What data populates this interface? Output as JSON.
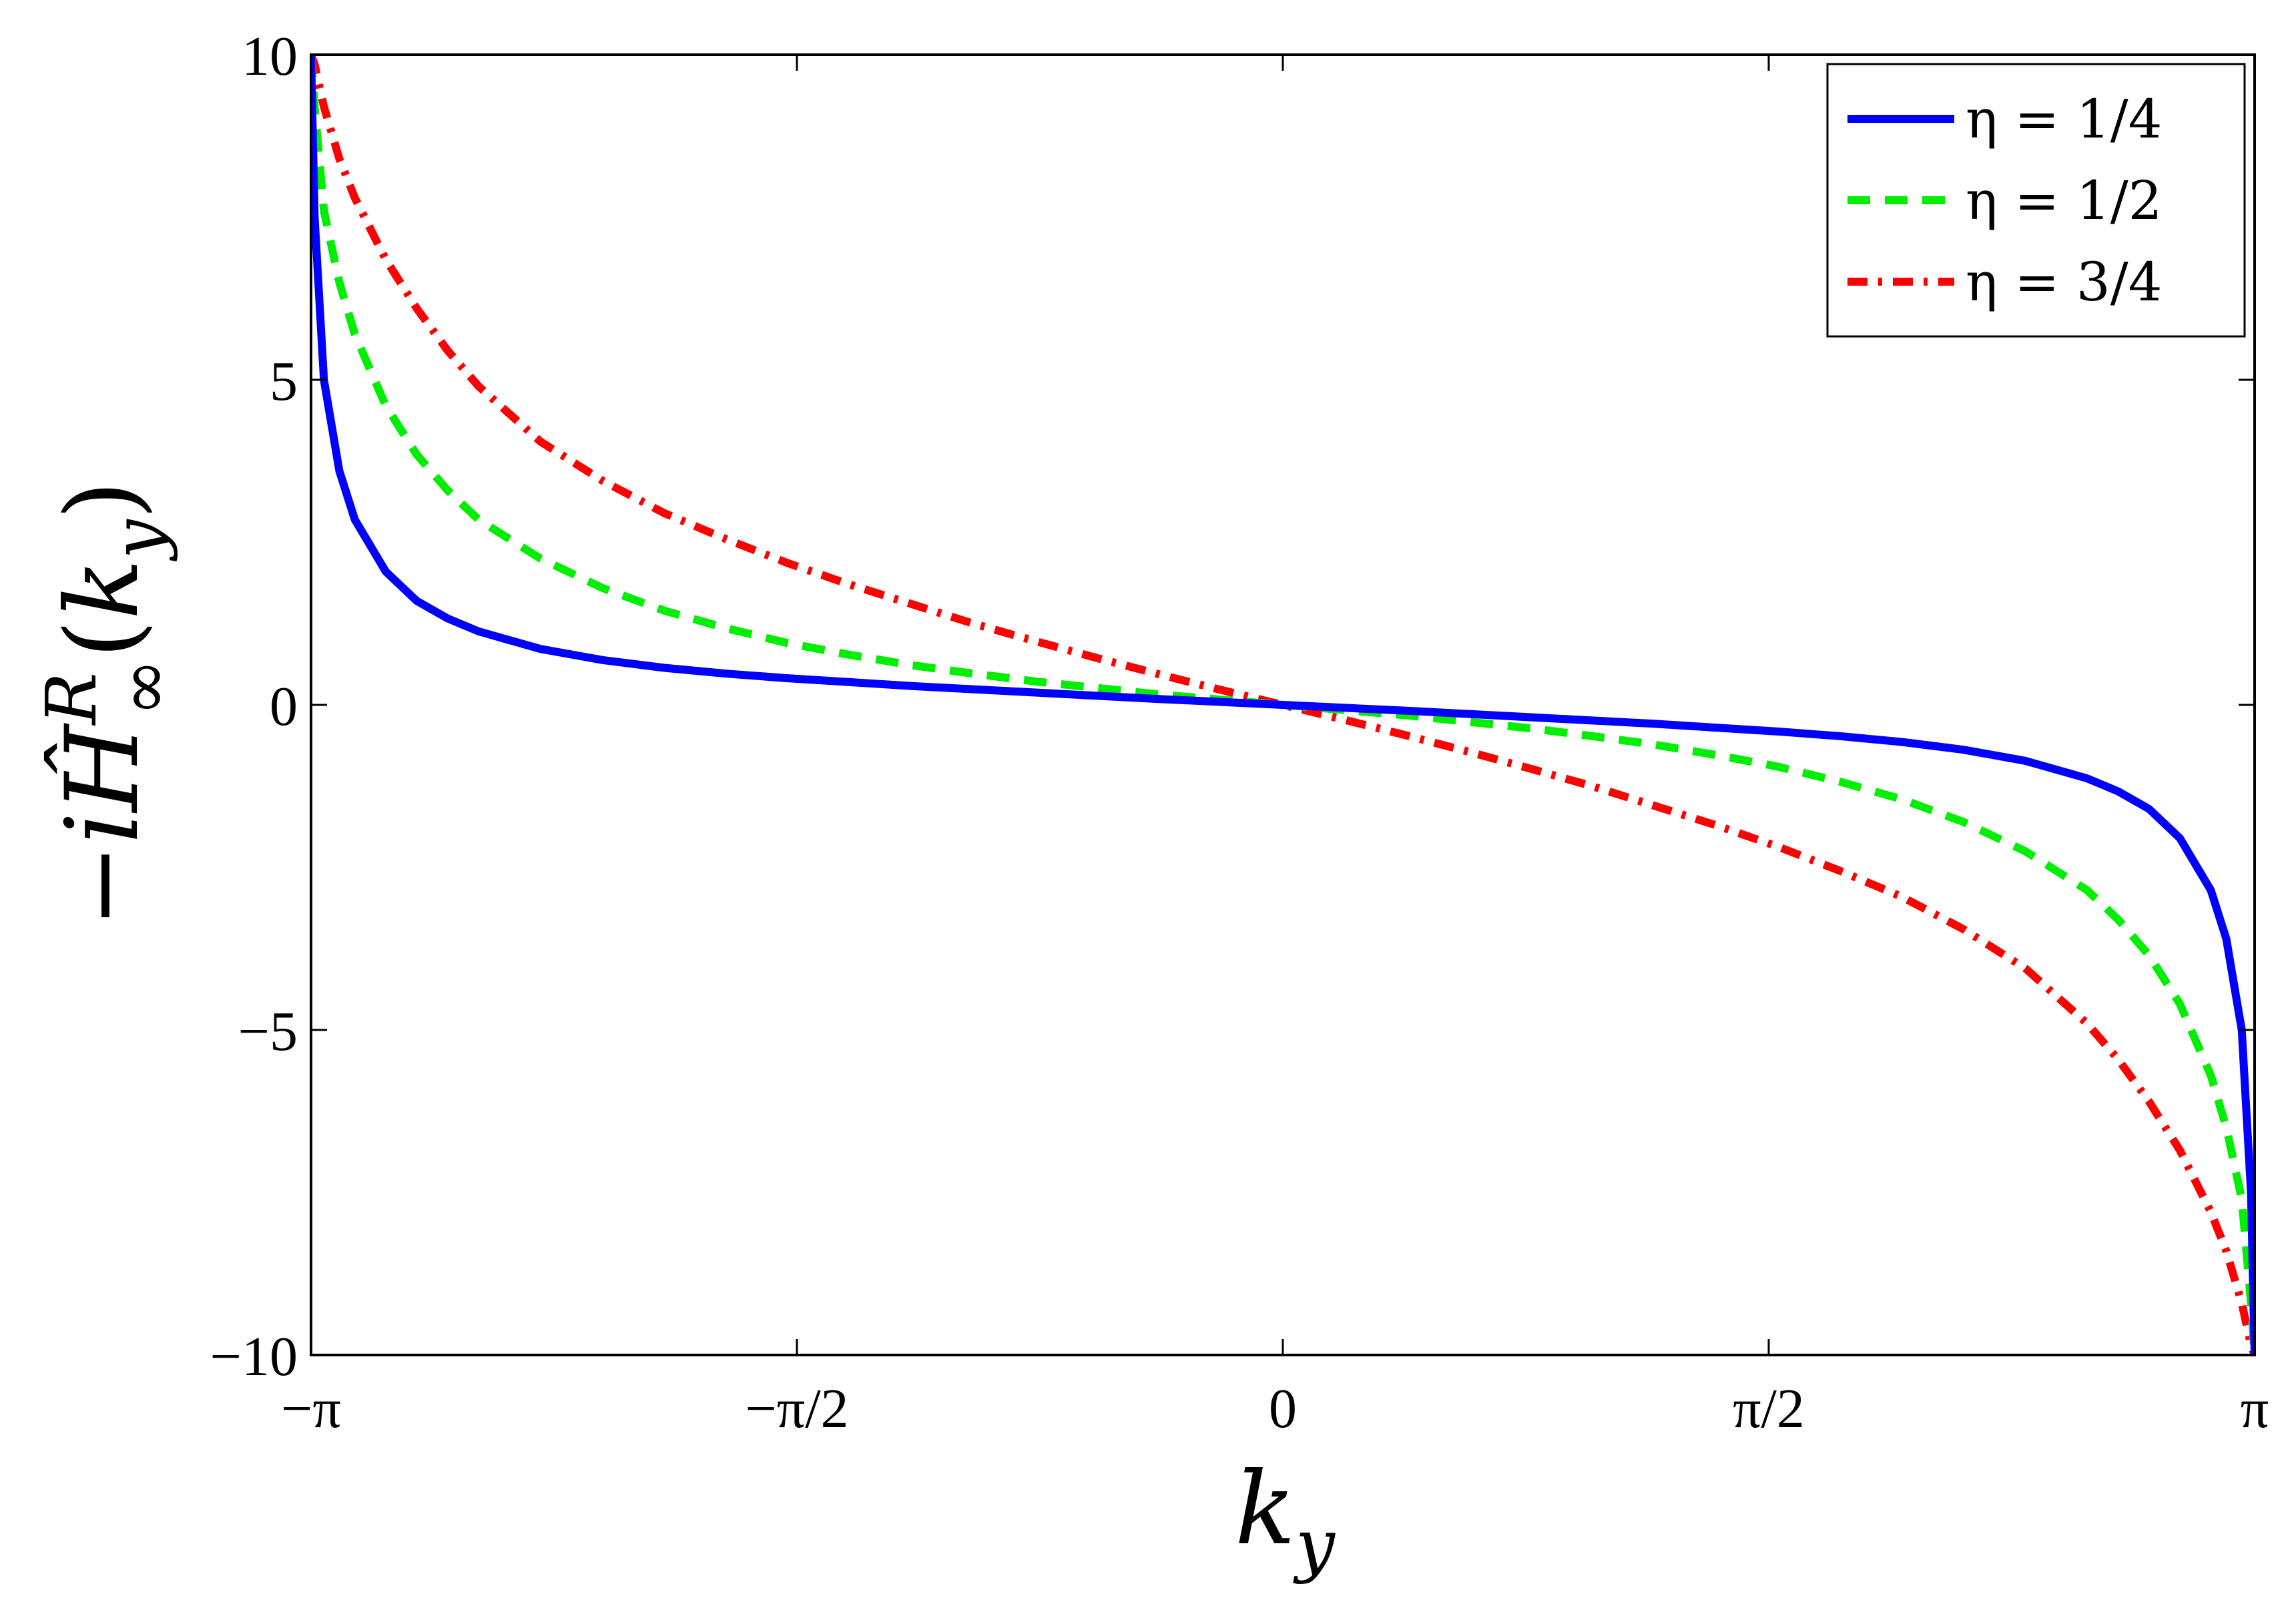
{
  "chart_data": {
    "type": "line",
    "title": "",
    "xlabel": "k_y",
    "ylabel": "-i Ĥ^R_∞(k_y)",
    "xlim": [
      -3.14159265,
      3.14159265
    ],
    "ylim": [
      -10,
      10
    ],
    "x_ticks": [
      {
        "value": -3.14159265,
        "label": "−π"
      },
      {
        "value": -1.57079633,
        "label": "−π/2"
      },
      {
        "value": 0,
        "label": "0"
      },
      {
        "value": 1.57079633,
        "label": "π/2"
      },
      {
        "value": 3.14159265,
        "label": "π"
      }
    ],
    "y_ticks": [
      {
        "value": 10,
        "label": "10"
      },
      {
        "value": 5,
        "label": "5"
      },
      {
        "value": 0,
        "label": "0"
      },
      {
        "value": -5,
        "label": "−5"
      },
      {
        "value": -10,
        "label": "−10"
      }
    ],
    "grid": false,
    "legend_position": "top-right",
    "series": [
      {
        "name": "η = 1/4",
        "color": "#0000ff",
        "dash": "solid",
        "x": [
          -3.1416,
          -3.13,
          -3.1,
          -3.05,
          -3.0,
          -2.9,
          -2.8,
          -2.7,
          -2.6,
          -2.4,
          -2.2,
          -2.0,
          -1.8,
          -1.6,
          -1.4,
          -1.2,
          -1.0,
          -0.8,
          -0.6,
          -0.4,
          -0.2,
          0,
          0.2,
          0.4,
          0.6,
          0.8,
          1.0,
          1.2,
          1.4,
          1.6,
          1.8,
          2.0,
          2.2,
          2.4,
          2.6,
          2.7,
          2.8,
          2.9,
          3.0,
          3.05,
          3.1,
          3.13,
          3.1416
        ],
        "y": [
          10,
          7.5,
          5.0,
          3.6,
          2.85,
          2.05,
          1.6,
          1.33,
          1.13,
          0.86,
          0.69,
          0.57,
          0.48,
          0.41,
          0.35,
          0.29,
          0.24,
          0.19,
          0.14,
          0.09,
          0.045,
          0,
          -0.045,
          -0.09,
          -0.14,
          -0.19,
          -0.24,
          -0.29,
          -0.35,
          -0.41,
          -0.48,
          -0.57,
          -0.69,
          -0.86,
          -1.13,
          -1.33,
          -1.6,
          -2.05,
          -2.85,
          -3.6,
          -5.0,
          -7.5,
          -10
        ]
      },
      {
        "name": "η = 1/2",
        "color": "#00ee00",
        "dash": "dashed",
        "x": [
          -3.1416,
          -3.13,
          -3.1,
          -3.05,
          -3.0,
          -2.9,
          -2.8,
          -2.7,
          -2.6,
          -2.4,
          -2.2,
          -2.0,
          -1.8,
          -1.6,
          -1.4,
          -1.2,
          -1.0,
          -0.8,
          -0.6,
          -0.4,
          -0.2,
          0,
          0.2,
          0.4,
          0.6,
          0.8,
          1.0,
          1.2,
          1.4,
          1.6,
          1.8,
          2.0,
          2.2,
          2.4,
          2.6,
          2.7,
          2.8,
          2.9,
          3.0,
          3.05,
          3.1,
          3.13,
          3.1416
        ],
        "y": [
          10,
          9.2,
          7.6,
          6.5,
          5.7,
          4.6,
          3.85,
          3.3,
          2.85,
          2.25,
          1.8,
          1.45,
          1.18,
          0.95,
          0.77,
          0.61,
          0.48,
          0.36,
          0.26,
          0.16,
          0.08,
          0,
          -0.08,
          -0.16,
          -0.26,
          -0.36,
          -0.48,
          -0.61,
          -0.77,
          -0.95,
          -1.18,
          -1.45,
          -1.8,
          -2.25,
          -2.85,
          -3.3,
          -3.85,
          -4.6,
          -5.7,
          -6.5,
          -7.6,
          -9.2,
          -10
        ]
      },
      {
        "name": "η = 3/4",
        "color": "#ff0000",
        "dash": "dash-dot",
        "x": [
          -3.1416,
          -3.13,
          -3.1,
          -3.05,
          -3.0,
          -2.9,
          -2.8,
          -2.7,
          -2.6,
          -2.4,
          -2.2,
          -2.0,
          -1.8,
          -1.6,
          -1.4,
          -1.2,
          -1.0,
          -0.8,
          -0.6,
          -0.4,
          -0.2,
          0,
          0.2,
          0.4,
          0.6,
          0.8,
          1.0,
          1.2,
          1.4,
          1.6,
          1.8,
          2.0,
          2.2,
          2.4,
          2.6,
          2.7,
          2.8,
          2.9,
          3.0,
          3.05,
          3.1,
          3.13,
          3.1416
        ],
        "y": [
          10,
          9.85,
          9.2,
          8.4,
          7.8,
          6.85,
          6.1,
          5.45,
          4.9,
          4.05,
          3.45,
          2.95,
          2.55,
          2.18,
          1.85,
          1.55,
          1.25,
          0.98,
          0.72,
          0.47,
          0.23,
          0,
          -0.23,
          -0.47,
          -0.72,
          -0.98,
          -1.25,
          -1.55,
          -1.85,
          -2.18,
          -2.55,
          -2.95,
          -3.45,
          -4.05,
          -4.9,
          -5.45,
          -6.1,
          -6.85,
          -7.8,
          -8.4,
          -9.2,
          -9.85,
          -10
        ]
      }
    ]
  }
}
